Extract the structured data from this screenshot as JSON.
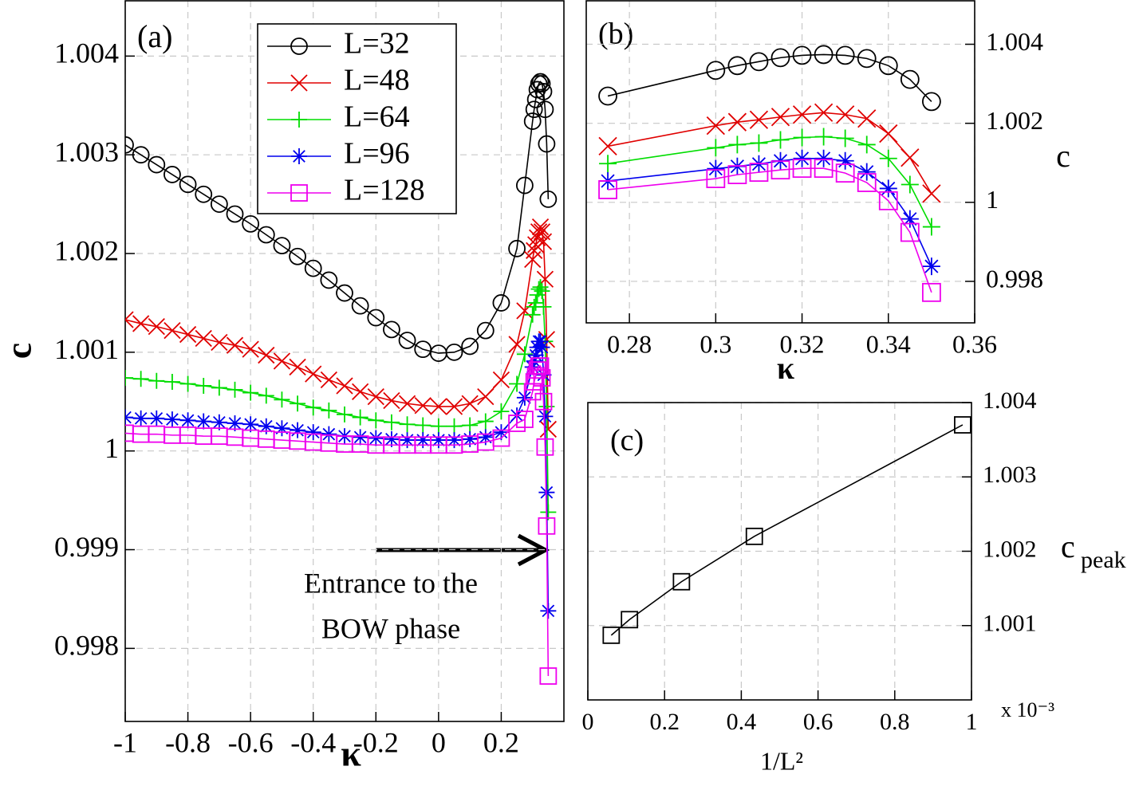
{
  "chart_data": [
    {
      "type": "line",
      "panel_label": "(a)",
      "xlabel": "κ",
      "ylabel": "c",
      "xlim": [
        -1,
        0.4
      ],
      "ylim": [
        0.99726,
        1.00456
      ],
      "xticks": [
        -1,
        -0.8,
        -0.6,
        -0.4,
        -0.2,
        0,
        0.2
      ],
      "yticks": [
        0.998,
        0.999,
        1,
        1.001,
        1.002,
        1.003,
        1.004
      ],
      "grid": true,
      "y_axis_position": "left",
      "legend": "upper center",
      "annotation": [
        "Entrance to the",
        "BOW phase"
      ],
      "x": [
        -1,
        -0.95,
        -0.9,
        -0.85,
        -0.8,
        -0.75,
        -0.7,
        -0.65,
        -0.6,
        -0.55,
        -0.5,
        -0.45,
        -0.4,
        -0.35,
        -0.3,
        -0.25,
        -0.2,
        -0.15,
        -0.1,
        -0.05,
        0,
        0.05,
        0.1,
        0.15,
        0.2,
        0.25,
        0.275,
        0.3,
        0.305,
        0.31,
        0.315,
        0.32,
        0.325,
        0.33,
        0.335,
        0.34,
        0.345,
        0.35
      ],
      "series": [
        {
          "name": "L=32",
          "color": "#000000",
          "marker": "circle",
          "values": [
            1.0031,
            1.003,
            1.0029,
            1.0028,
            1.0027,
            1.0026,
            1.0025,
            1.0024,
            1.0023,
            1.00219,
            1.00208,
            1.00197,
            1.00185,
            1.00173,
            1.0016,
            1.00147,
            1.00135,
            1.00123,
            1.00112,
            1.00103,
            1.00099,
            1.001,
            1.00106,
            1.00122,
            1.0015,
            1.00205,
            1.00269,
            1.00334,
            1.00346,
            1.00356,
            1.00366,
            1.00372,
            1.00374,
            1.00372,
            1.00364,
            1.00346,
            1.00311,
            1.00255
          ]
        },
        {
          "name": "L=48",
          "color": "#e00000",
          "marker": "x",
          "values": [
            1.00133,
            1.00129,
            1.00126,
            1.00122,
            1.00118,
            1.00114,
            1.0011,
            1.00107,
            1.00103,
            1.00097,
            1.00091,
            1.00085,
            1.00078,
            1.00072,
            1.00066,
            1.0006,
            1.00055,
            1.00051,
            1.00048,
            1.00046,
            1.00045,
            1.00045,
            1.00048,
            1.00055,
            1.00072,
            1.00108,
            1.00142,
            1.00194,
            1.00203,
            1.00209,
            1.00216,
            1.00222,
            1.00227,
            1.00222,
            1.00212,
            1.00174,
            1.00113,
            1.00022
          ]
        },
        {
          "name": "L=64",
          "color": "#00dd00",
          "marker": "plus",
          "values": [
            1.00074,
            1.00073,
            1.00071,
            1.0007,
            1.00068,
            1.00066,
            1.00064,
            1.00062,
            1.00059,
            1.00056,
            1.00052,
            1.00048,
            1.00044,
            1.00041,
            1.00037,
            1.00034,
            1.00031,
            1.00029,
            1.00027,
            1.00026,
            1.00025,
            1.00025,
            1.00026,
            1.0003,
            1.0004,
            1.00068,
            1.00098,
            1.00138,
            1.00146,
            1.0015,
            1.00158,
            1.00164,
            1.00166,
            1.00162,
            1.00146,
            1.00111,
            1.00045,
            0.99938
          ]
        },
        {
          "name": "L=96",
          "color": "#0000ee",
          "marker": "star",
          "values": [
            1.00034,
            1.00033,
            1.00033,
            1.00032,
            1.00031,
            1.0003,
            1.00029,
            1.00028,
            1.00027,
            1.00025,
            1.00023,
            1.00021,
            1.00019,
            1.00017,
            1.00015,
            1.00014,
            1.00013,
            1.00012,
            1.00011,
            1.00011,
            1.00011,
            1.00011,
            1.00012,
            1.00014,
            1.00019,
            1.00036,
            1.00054,
            1.00085,
            1.00091,
            1.00097,
            1.00105,
            1.00111,
            1.00111,
            1.00105,
            1.00077,
            1.00035,
            0.99958,
            0.99838
          ]
        },
        {
          "name": "L=128",
          "color": "#ee00ee",
          "marker": "square",
          "values": [
            1.00018,
            1.00017,
            1.00017,
            1.00016,
            1.00016,
            1.00015,
            1.00015,
            1.00014,
            1.00013,
            1.00012,
            1.00011,
            1.0001,
            1.00009,
            1.00008,
            1.00007,
            1.00007,
            1.00006,
            1.00006,
            1.00006,
            1.00006,
            1.00006,
            1.00006,
            1.00007,
            1.00009,
            1.00013,
            1.00028,
            1.00032,
            1.0006,
            1.0007,
            1.00076,
            1.00082,
            1.00086,
            1.00086,
            1.00074,
            1.0005,
            1.00004,
            0.99924,
            0.99772
          ]
        }
      ]
    },
    {
      "type": "line",
      "panel_label": "(b)",
      "xlabel": "κ",
      "ylabel": "c",
      "xlim": [
        0.27,
        0.36
      ],
      "ylim": [
        0.99695,
        1.0051
      ],
      "xticks": [
        0.28,
        0.3,
        0.32,
        0.34,
        0.36
      ],
      "yticks": [
        0.998,
        1,
        1.002,
        1.004
      ],
      "grid": true,
      "y_axis_position": "right",
      "x": [
        0.275,
        0.3,
        0.305,
        0.31,
        0.315,
        0.32,
        0.325,
        0.33,
        0.335,
        0.34,
        0.345,
        0.35
      ],
      "series": [
        {
          "color": "#000000",
          "marker": "circle",
          "values": [
            1.00269,
            1.00334,
            1.00346,
            1.00356,
            1.00366,
            1.00372,
            1.00374,
            1.00372,
            1.00364,
            1.00346,
            1.00311,
            1.00255
          ]
        },
        {
          "color": "#e00000",
          "marker": "x",
          "values": [
            1.00142,
            1.00194,
            1.00203,
            1.00209,
            1.00216,
            1.00222,
            1.00227,
            1.00222,
            1.00212,
            1.00174,
            1.00113,
            1.00022
          ]
        },
        {
          "color": "#00dd00",
          "marker": "plus",
          "values": [
            1.00098,
            1.00138,
            1.00146,
            1.0015,
            1.00158,
            1.00164,
            1.00166,
            1.00162,
            1.00146,
            1.00111,
            1.00045,
            0.99938
          ]
        },
        {
          "color": "#0000ee",
          "marker": "star",
          "values": [
            1.00054,
            1.00085,
            1.00091,
            1.00097,
            1.00105,
            1.00111,
            1.00111,
            1.00105,
            1.00077,
            1.00035,
            0.99958,
            0.99838
          ]
        },
        {
          "color": "#ee00ee",
          "marker": "square",
          "values": [
            1.00032,
            1.0006,
            1.0007,
            1.00076,
            1.00082,
            1.00086,
            1.00086,
            1.00074,
            1.0005,
            1.00004,
            0.99924,
            0.99772
          ]
        }
      ]
    },
    {
      "type": "line",
      "panel_label": "(c)",
      "xlabel": "1/L²",
      "ylabel": "c",
      "ylabel_sub": "peak",
      "x_multiplier": "x 10⁻³",
      "xlim": [
        0,
        1
      ],
      "ylim": [
        1,
        1.004
      ],
      "xticks": [
        0,
        0.2,
        0.4,
        0.6,
        0.8,
        1
      ],
      "yticks": [
        1.001,
        1.002,
        1.003,
        1.004
      ],
      "grid": true,
      "y_axis_position": "right",
      "x": [
        0.061,
        0.1085,
        0.244,
        0.434,
        0.977
      ],
      "series": [
        {
          "color": "#000000",
          "marker": "square",
          "values": [
            1.00087,
            1.00108,
            1.00159,
            1.0022,
            1.0037
          ]
        }
      ]
    }
  ]
}
